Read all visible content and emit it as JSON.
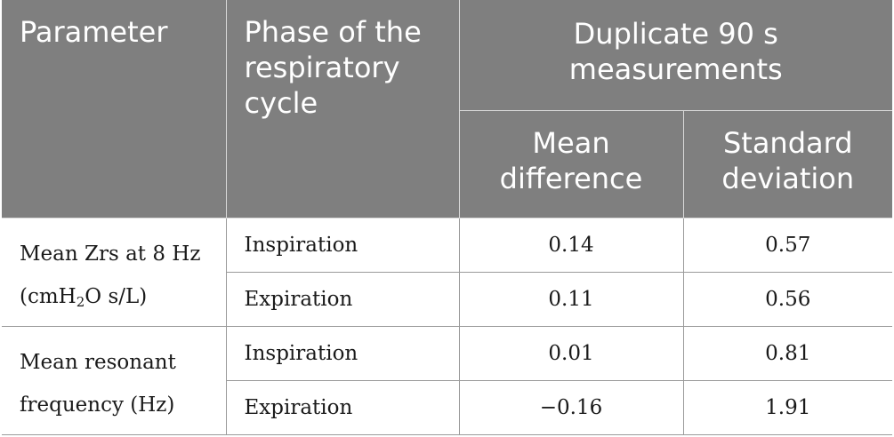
{
  "header": {
    "parameter": "Parameter",
    "phase": "Phase of the respiratory cycle",
    "group": "Duplicate 90 s measurements",
    "mean_difference": "Mean difference",
    "standard_deviation": "Standard deviation"
  },
  "rows": [
    {
      "parameter_line1": "Mean Zrs at 8 Hz",
      "parameter_unit_pre": "(cmH",
      "parameter_unit_sub": "2",
      "parameter_unit_post": "O s/L)",
      "phases": [
        {
          "phase": "Inspiration",
          "mean_difference": "0.14",
          "standard_deviation": "0.57"
        },
        {
          "phase": "Expiration",
          "mean_difference": "0.11",
          "standard_deviation": "0.56"
        }
      ]
    },
    {
      "parameter_line1": "Mean resonant",
      "parameter_line2": "frequency (Hz)",
      "phases": [
        {
          "phase": "Inspiration",
          "mean_difference": "0.01",
          "standard_deviation": "0.81"
        },
        {
          "phase": "Expiration",
          "mean_difference": "−0.16",
          "standard_deviation": "1.91"
        }
      ]
    }
  ]
}
